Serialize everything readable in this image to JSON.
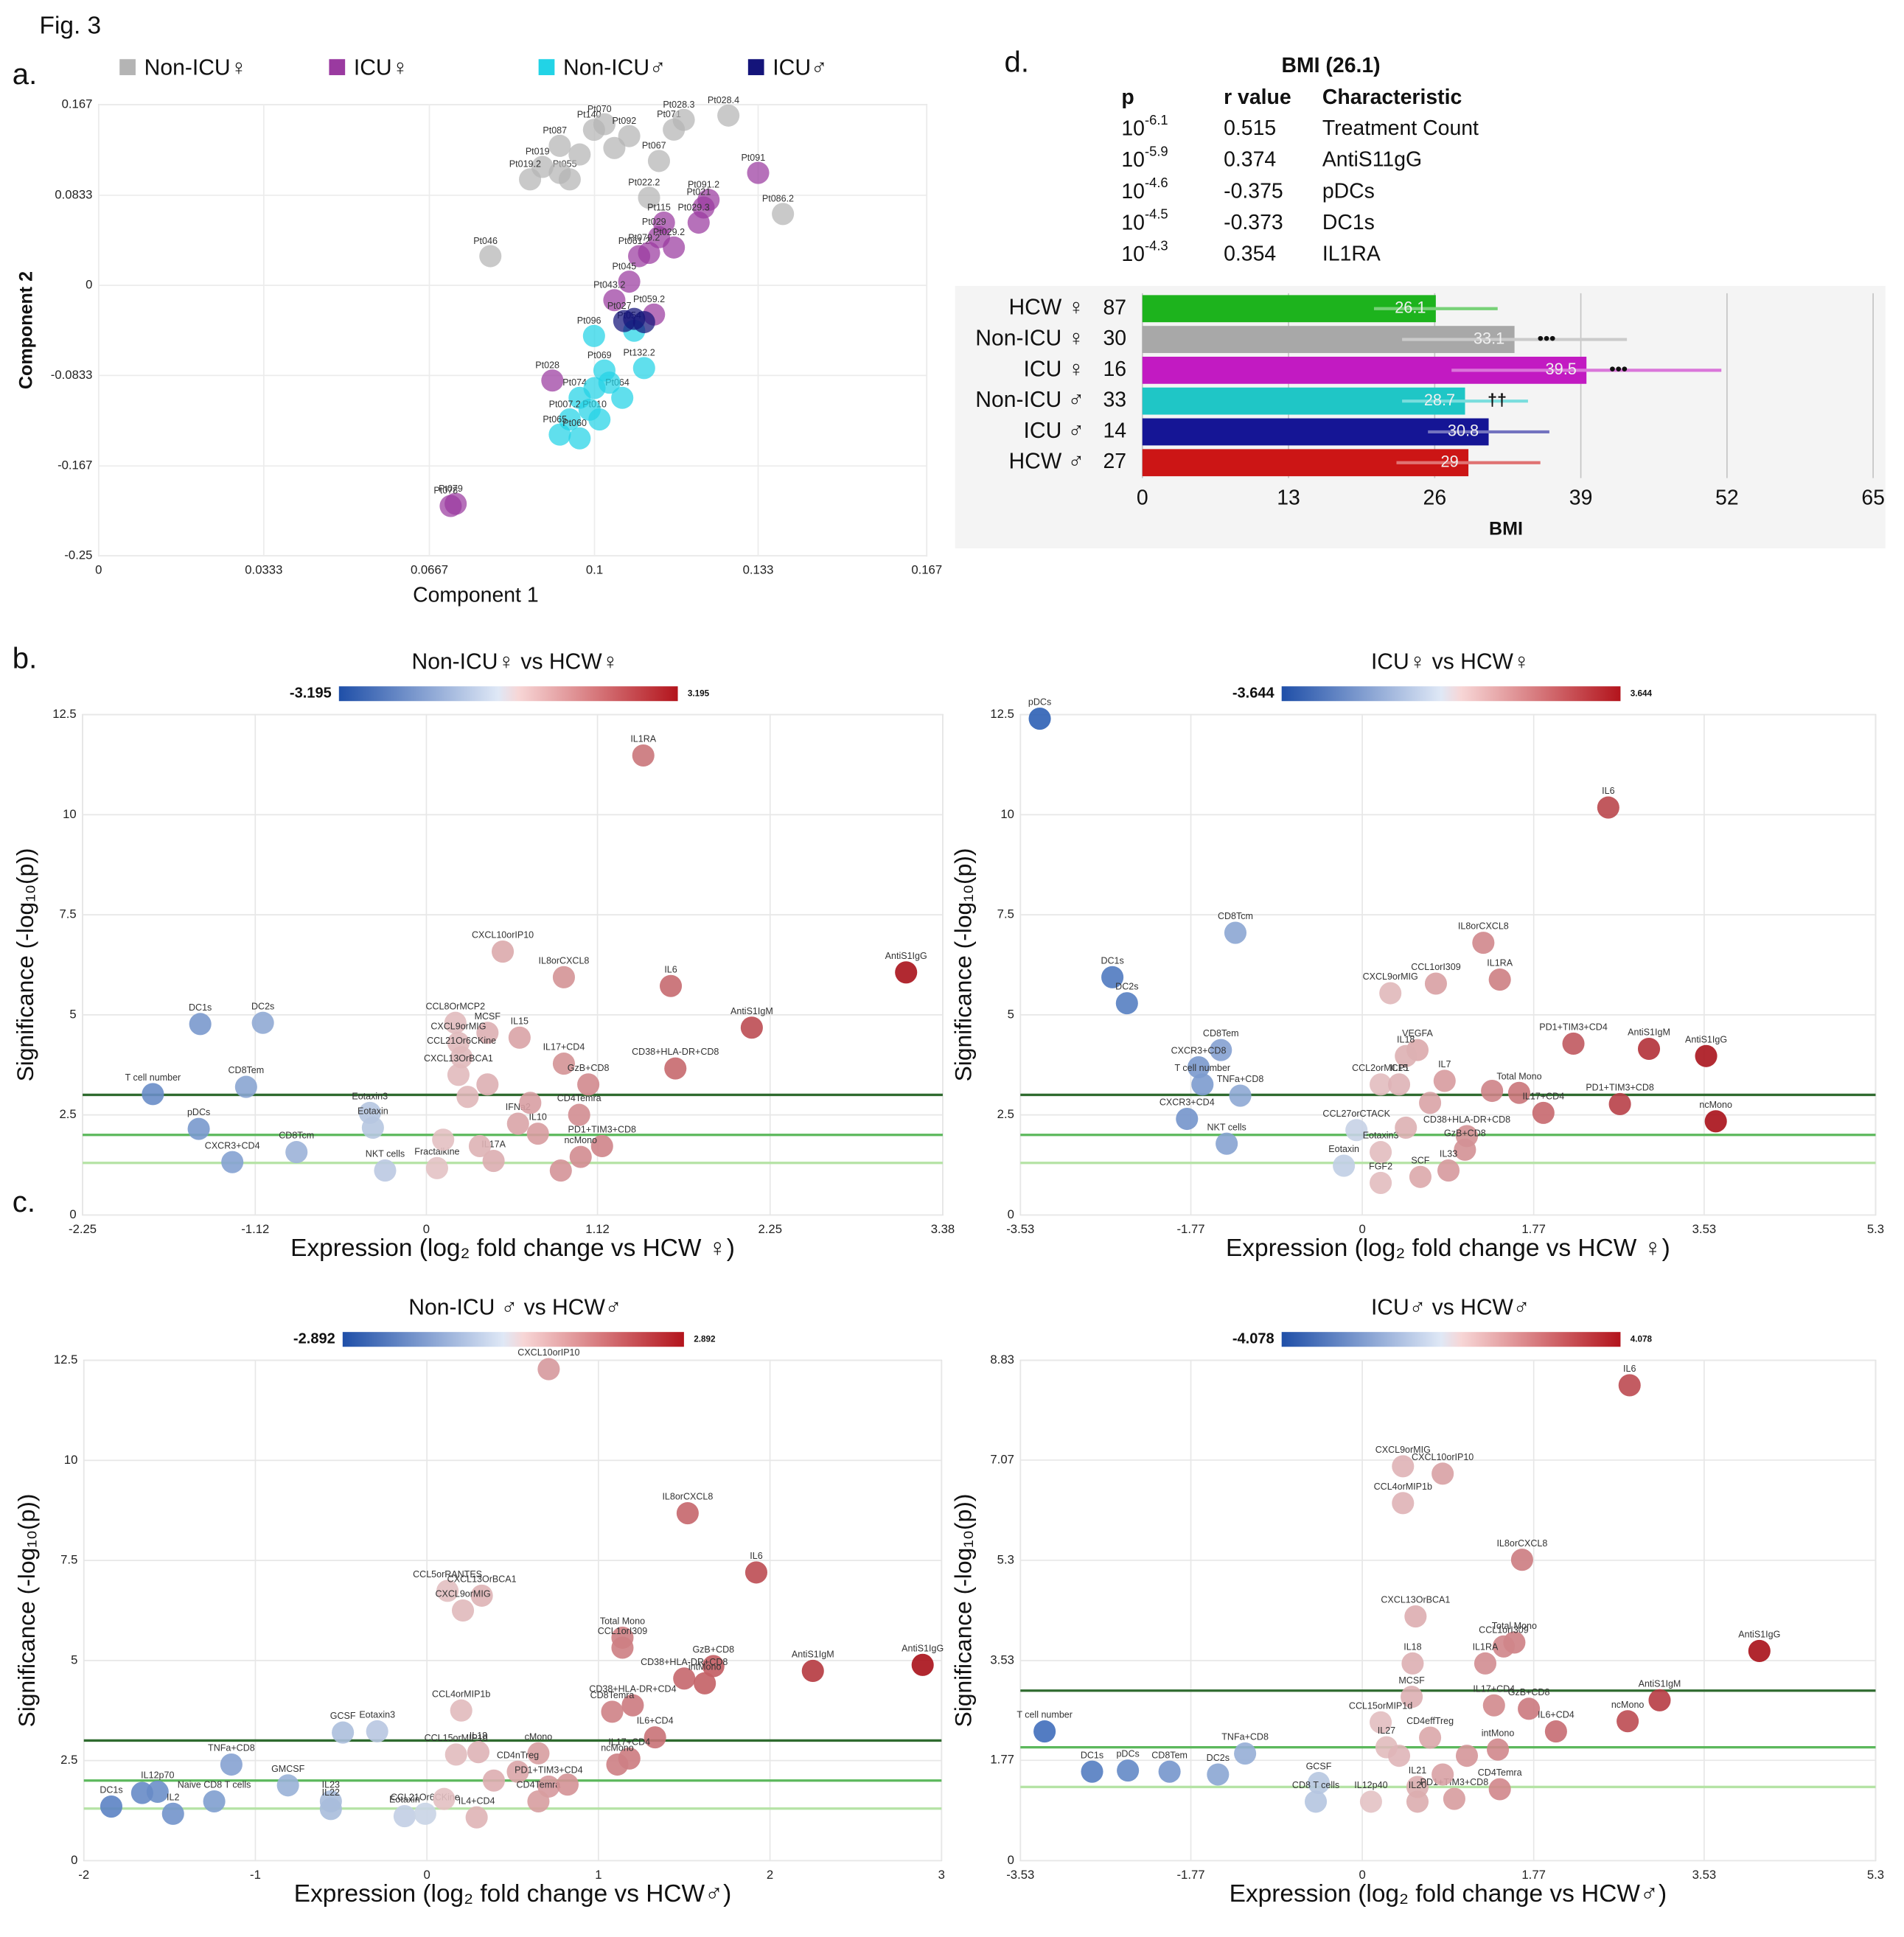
{
  "figure_label": "Fig. 3",
  "chart_data": [
    {
      "type": "scatter",
      "panel_label": "a.",
      "xlabel": "Component 1",
      "ylabel": "Component 2",
      "xlim": [
        0,
        0.167
      ],
      "ylim": [
        -0.25,
        0.167
      ],
      "xticks": [
        0,
        0.0333,
        0.0667,
        0.1,
        0.133,
        0.167
      ],
      "yticks": [
        -0.25,
        -0.167,
        -0.0833,
        0,
        0.0833,
        0.167
      ],
      "grid": true,
      "series": [
        {
          "name": "Non-ICU♀",
          "color": "#b4b4b4",
          "labels": [
            "Pt140",
            "Pt070",
            "Pt092",
            "Pt087",
            "Pt019",
            "Pt055",
            "Pt071",
            "Pt067",
            "Pt028.3",
            "Pt028.4",
            "Pt022.2",
            "Pt019.2",
            "Pt086.2",
            "Pt046",
            null,
            null,
            null
          ],
          "x": [
            0.0999,
            0.102,
            0.107,
            0.093,
            0.0895,
            0.095,
            0.116,
            0.113,
            0.118,
            0.127,
            0.111,
            0.087,
            0.138,
            0.079,
            0.097,
            0.093,
            0.104
          ],
          "y": [
            0.1438,
            0.149,
            0.138,
            0.129,
            0.1095,
            0.098,
            0.144,
            0.115,
            0.153,
            0.157,
            0.081,
            0.098,
            0.066,
            0.027,
            0.121,
            0.104,
            0.127
          ]
        },
        {
          "name": "ICU♀",
          "color": "#9a3aa0",
          "labels": [
            "Pt091",
            "Pt091.2",
            "Pt021",
            "Pt029.3",
            "Pt115",
            "Pt029",
            "Pt029.2",
            "Pt061.2",
            "Pt079.2",
            "Pt045",
            "Pt043.2",
            "Pt059.2",
            "Pt028",
            "Pt079",
            "Pt078"
          ],
          "x": [
            0.133,
            0.123,
            0.122,
            0.121,
            0.114,
            0.113,
            0.116,
            0.109,
            0.111,
            0.107,
            0.104,
            0.112,
            0.0915,
            0.072,
            0.071
          ],
          "y": [
            0.104,
            0.079,
            0.072,
            0.058,
            0.058,
            0.0445,
            0.035,
            0.027,
            0.03,
            0.0034,
            -0.0137,
            -0.027,
            -0.088,
            -0.202,
            -0.204
          ]
        },
        {
          "name": "Non-ICU♂",
          "color": "#22d3e6",
          "labels": [
            "Pt096",
            "Pt054",
            "Pt069",
            "Pt132.2",
            "Pt074",
            "Pt064",
            "Pt007.2",
            "Pt065",
            "Pt010",
            "Pt060",
            null,
            null,
            null
          ],
          "x": [
            0.0999,
            0.108,
            0.102,
            0.11,
            0.097,
            0.1056,
            0.095,
            0.093,
            0.101,
            0.097,
            0.1,
            0.103,
            0.099
          ],
          "y": [
            -0.0468,
            -0.042,
            -0.0787,
            -0.0765,
            -0.104,
            -0.104,
            -0.124,
            -0.138,
            -0.124,
            -0.1415,
            -0.095,
            -0.09,
            -0.115
          ]
        },
        {
          "name": "ICU♂",
          "color": "#14147a",
          "labels": [
            "Pt027",
            null,
            null
          ],
          "x": [
            0.106,
            0.108,
            0.11
          ],
          "y": [
            -0.033,
            -0.031,
            -0.034
          ]
        }
      ]
    },
    {
      "type": "hbar",
      "panel_label": "d.",
      "table": {
        "title": "BMI (26.1)",
        "header": [
          "p",
          "r value",
          "Characteristic"
        ],
        "rows": [
          [
            "10",
            "-6.1",
            0.515,
            "Treatment Count"
          ],
          [
            "10",
            "-5.9",
            0.374,
            "AntiS11gG"
          ],
          [
            "10",
            "-4.6",
            -0.375,
            "pDCs"
          ],
          [
            "10",
            "-4.5",
            -0.373,
            "DC1s"
          ],
          [
            "10",
            "-4.3",
            0.354,
            "IL1RA"
          ]
        ]
      },
      "categories": [
        "HCW ♀",
        "Non-ICU ♀",
        "ICU ♀",
        "Non-ICU ♂",
        "ICU ♂",
        "HCW ♂"
      ],
      "n": [
        87,
        30,
        16,
        33,
        14,
        27
      ],
      "values": [
        26.1,
        33.1,
        39.5,
        28.7,
        30.8,
        29
      ],
      "errors": [
        5.5,
        10,
        12,
        5.6,
        5.4,
        6.4
      ],
      "annotations": [
        null,
        "•••",
        "•••",
        "††",
        null,
        null
      ],
      "colors": [
        "#1db31d",
        "#a8a8a8",
        "#c21ac2",
        "#1fc6c6",
        "#151595",
        "#cc1515"
      ],
      "xlabel": "BMI",
      "xlim": [
        0,
        65
      ],
      "xticks": [
        0,
        13,
        26,
        39,
        52,
        65
      ],
      "grid": true
    },
    {
      "type": "volcano",
      "panel_label": "b.",
      "title": "Non-ICU♀ vs HCW♀",
      "xlabel": "Expression (log₂ fold change vs HCW ♀)",
      "ylabel": "Significance (-log₁₀(p))",
      "colorbar": [
        -3.195,
        3.195
      ],
      "xlim": [
        -2.25,
        3.38
      ],
      "xticks": [
        -2.25,
        -1.12,
        0,
        1.12,
        2.25,
        3.38
      ],
      "ylim": [
        0,
        12.5
      ],
      "yticks": [
        0,
        2.5,
        5,
        7.5,
        10,
        12.5
      ],
      "grid": true,
      "threshold_lines": [
        {
          "value": 3,
          "color": "#2f6b2f"
        },
        {
          "value": 2,
          "color": "#5cb85c"
        },
        {
          "value": 1.3,
          "color": "#b5e3a5"
        }
      ],
      "labels": [
        "IL1RA",
        "AntiS1IgG",
        "CXCL10orIP10",
        "IL8orCXCL8",
        "IL6",
        "AntiS1IgM",
        "CCL8OrMCP2",
        "MCSF",
        "IL15",
        "CXCL9orMIG",
        "IL17+CD4",
        "CD38+HLA-DR+CD8",
        "GzB+CD8",
        "CCL21Or6CKine",
        "CXCL13OrBCA1",
        "Eotaxin3",
        "Eotaxin",
        "IFNa2",
        "CD4Temra",
        "PD1+TIM3+CD8",
        "IL10",
        "ncMono",
        "IL17A",
        "Fractalkine",
        "NKT cells",
        "DC1s",
        "DC2s",
        "CD8Tem",
        "T cell number",
        "pDCs",
        "CD8Tcm",
        "CXCR3+CD4",
        null,
        null,
        null,
        null,
        null,
        null
      ],
      "x": [
        1.42,
        3.14,
        0.5,
        0.9,
        1.6,
        2.13,
        0.19,
        0.4,
        0.61,
        0.21,
        0.9,
        1.63,
        1.06,
        0.23,
        0.21,
        -0.37,
        -0.35,
        0.6,
        1.0,
        1.15,
        0.73,
        1.01,
        0.44,
        0.07,
        -0.27,
        -1.48,
        -1.07,
        -1.18,
        -1.79,
        -1.49,
        -0.85,
        -1.27,
        0.27,
        0.68,
        0.11,
        0.35,
        0.88,
        0.4
      ],
      "y": [
        11.48,
        6.06,
        6.58,
        5.94,
        5.72,
        4.68,
        4.8,
        4.55,
        4.43,
        4.3,
        3.78,
        3.66,
        3.26,
        3.94,
        3.5,
        2.55,
        2.18,
        2.28,
        2.5,
        1.72,
        2.03,
        1.45,
        1.35,
        1.17,
        1.11,
        4.77,
        4.8,
        3.2,
        3.02,
        2.15,
        1.57,
        1.32,
        2.95,
        2.8,
        1.88,
        1.72,
        1.11,
        3.26
      ]
    },
    {
      "type": "volcano",
      "title": "ICU♀ vs HCW♀",
      "xlabel": "Expression (log₂ fold change vs HCW ♀)",
      "ylabel": "Significance (-log₁₀(p))",
      "colorbar": [
        -3.644,
        3.644
      ],
      "xlim": [
        -3.53,
        5.3
      ],
      "xticks": [
        -3.53,
        -1.77,
        0,
        1.77,
        3.53,
        5.3
      ],
      "ylim": [
        0,
        12.5
      ],
      "yticks": [
        0,
        2.5,
        5,
        7.5,
        10,
        12.5
      ],
      "grid": true,
      "threshold_lines": [
        {
          "value": 3,
          "color": "#2f6b2f"
        },
        {
          "value": 2,
          "color": "#5cb85c"
        },
        {
          "value": 1.3,
          "color": "#b5e3a5"
        }
      ],
      "labels": [
        "pDCs",
        "IL6",
        "CD8Tcm",
        "IL8orCXCL8",
        "DC1s",
        "CCL1orI309",
        "IL1RA",
        "CXCL9orMIG",
        "DC2s",
        "AntiS1IgM",
        "AntiS1IgG",
        "PD1+TIM3+CD4",
        "CD8Tem",
        "VEGFA",
        "IL18",
        "CCL2orMCP1",
        "IL7",
        "CXCR3+CD8",
        "T cell number",
        "TNFa+CD8",
        "IL15",
        "Total Mono",
        "PD1+TIM3+CD8",
        "ncMono",
        "CXCR3+CD4",
        "NKT cells",
        "IL17+CD4",
        "CCL27orCTACK",
        "CD38+HLA-DR+CD8",
        "GzB+CD8",
        "Eotaxin3",
        "Eotaxin",
        "IL33",
        "SCF",
        "FGF2",
        null,
        null,
        null
      ],
      "x": [
        -3.33,
        2.54,
        -1.31,
        1.25,
        -2.58,
        0.76,
        1.42,
        0.29,
        -2.43,
        2.96,
        3.55,
        2.18,
        -1.46,
        0.57,
        0.45,
        0.19,
        0.85,
        -1.69,
        -1.65,
        -1.26,
        0.38,
        1.62,
        2.66,
        3.65,
        -1.81,
        -1.4,
        1.87,
        -0.06,
        1.08,
        1.06,
        0.19,
        -0.19,
        0.89,
        0.6,
        0.19,
        0.7,
        0.45,
        1.34
      ],
      "y": [
        12.4,
        10.18,
        7.05,
        6.8,
        5.94,
        5.78,
        5.88,
        5.54,
        5.29,
        4.15,
        3.97,
        4.28,
        4.12,
        4.12,
        3.97,
        3.26,
        3.35,
        3.69,
        3.26,
        2.98,
        3.26,
        3.05,
        2.77,
        2.34,
        2.4,
        1.78,
        2.55,
        2.12,
        1.97,
        1.63,
        1.57,
        1.23,
        1.11,
        0.95,
        0.8,
        2.8,
        2.18,
        3.1
      ]
    },
    {
      "type": "volcano",
      "panel_label": "c.",
      "title": "Non-ICU ♂ vs HCW♂",
      "xlabel": "Expression (log₂ fold change vs HCW♂)",
      "ylabel": "Significance (-log₁₀(p))",
      "colorbar": [
        -2.892,
        2.892
      ],
      "xlim": [
        -2,
        3
      ],
      "xticks": [
        -2,
        -1,
        0,
        1,
        2,
        3
      ],
      "ylim": [
        0,
        12.5
      ],
      "yticks": [
        0,
        2.5,
        5,
        7.5,
        10,
        12.5
      ],
      "grid": true,
      "threshold_lines": [
        {
          "value": 3,
          "color": "#2f6b2f"
        },
        {
          "value": 2,
          "color": "#5cb85c"
        },
        {
          "value": 1.3,
          "color": "#b5e3a5"
        }
      ],
      "labels": [
        "CXCL10orIP10",
        "IL8orCXCL8",
        "IL6",
        "CCL5orRANTES",
        "CXCL13OrBCA1",
        "CXCL9orMIG",
        "Total Mono",
        "CCL1orI309",
        "GzB+CD8",
        "AntiS1IgM",
        "AntiS1IgG",
        "CD38+HLA-DR+CD8",
        "intMono",
        "CD38+HLA-DR+CD4",
        "CCL4orMIP1b",
        "CD8Temra",
        "GCSF",
        "Eotaxin3",
        "IL18",
        "IL6+CD4",
        "cMono",
        "TNFa+CD8",
        "IL12p70",
        "IL17+CD4",
        "CCL15orMIP1d",
        "CD4nTreg",
        "ncMono",
        "GMCSF",
        "IL23",
        "IL22",
        "DC1s",
        "IL2",
        "Naive CD8 T cells",
        "Eotaxin",
        "PD1+TIM3+CD4",
        "CCL21Or6CKine",
        "IL4+CD4",
        "CD4Temra",
        null,
        null,
        null,
        null
      ],
      "x": [
        0.71,
        1.52,
        1.92,
        0.12,
        0.32,
        0.21,
        1.14,
        1.14,
        1.67,
        2.25,
        2.89,
        1.5,
        1.62,
        1.2,
        0.2,
        1.08,
        -0.49,
        -0.29,
        0.3,
        1.33,
        0.65,
        -1.14,
        -1.57,
        1.18,
        0.17,
        0.53,
        1.11,
        -0.81,
        -0.56,
        -0.56,
        -1.84,
        -1.48,
        -1.24,
        -0.13,
        0.71,
        -0.01,
        0.29,
        0.65,
        0.39,
        0.82,
        0.1,
        -1.66
      ],
      "y": [
        12.28,
        8.68,
        7.2,
        6.74,
        6.62,
        6.25,
        5.57,
        5.32,
        4.86,
        4.74,
        4.89,
        4.55,
        4.43,
        3.88,
        3.75,
        3.72,
        3.2,
        3.23,
        2.71,
        3.08,
        2.68,
        2.4,
        1.72,
        2.55,
        2.65,
        2.22,
        2.4,
        1.88,
        1.48,
        1.29,
        1.35,
        1.17,
        1.48,
        1.11,
        1.85,
        1.17,
        1.08,
        1.48,
        2.0,
        1.9,
        1.54,
        1.69
      ]
    },
    {
      "type": "volcano",
      "title": "ICU♂ vs HCW♂",
      "xlabel": "Expression (log₂ fold change vs HCW♂)",
      "ylabel": "Significance (-log₁₀(p))",
      "colorbar": [
        -4.078,
        4.078
      ],
      "xlim": [
        -3.53,
        5.3
      ],
      "xticks": [
        -3.53,
        -1.77,
        0,
        1.77,
        3.53,
        5.3
      ],
      "ylim": [
        0,
        8.83
      ],
      "yticks": [
        0,
        1.77,
        3.53,
        5.3,
        7.07,
        8.83
      ],
      "grid": true,
      "threshold_lines": [
        {
          "value": 3,
          "color": "#2f6b2f"
        },
        {
          "value": 2,
          "color": "#5cb85c"
        },
        {
          "value": 1.3,
          "color": "#b5e3a5"
        }
      ],
      "labels": [
        "IL6",
        "CXCL9orMIG",
        "CXCL10orIP10",
        "CCL4orMIP1b",
        "IL8orCXCL8",
        "CXCL13OrBCA1",
        "Total Mono",
        "CCL1orI309",
        "AntiS1IgG",
        "IL18",
        "IL1RA",
        "AntiS1IgM",
        "MCSF",
        "IL17+CD4",
        "GzB+CD8",
        "ncMono",
        "T cell number",
        "CCL15orMIP1d",
        "CD4effTreg",
        "IL27",
        "TNFa+CD8",
        "IL6+CD4",
        "intMono",
        "DC1s",
        "pDCs",
        "DC2s",
        "CD8Tem",
        "CD4Temra",
        "GCSF",
        "CD8 T cells",
        "IL21",
        "IL12p40",
        "IL20",
        "PD1+TIM3+CD8",
        null,
        null,
        null
      ],
      "x": [
        2.76,
        0.42,
        0.83,
        0.42,
        1.65,
        0.55,
        1.57,
        1.46,
        4.1,
        0.52,
        1.27,
        3.07,
        0.51,
        1.36,
        1.72,
        2.74,
        -3.28,
        0.19,
        0.7,
        0.25,
        -1.21,
        2.0,
        1.4,
        -2.79,
        -2.42,
        -1.49,
        -1.99,
        1.42,
        -0.45,
        -0.48,
        0.57,
        0.09,
        0.57,
        0.95,
        0.38,
        1.08,
        0.83
      ],
      "y": [
        8.39,
        6.96,
        6.83,
        6.31,
        5.31,
        4.31,
        3.85,
        3.78,
        3.7,
        3.48,
        3.48,
        2.83,
        2.89,
        2.74,
        2.68,
        2.46,
        2.28,
        2.44,
        2.17,
        2.0,
        1.89,
        2.28,
        1.96,
        1.57,
        1.59,
        1.52,
        1.57,
        1.26,
        1.37,
        1.04,
        1.3,
        1.04,
        1.04,
        1.09,
        1.85,
        1.85,
        1.52
      ]
    }
  ]
}
